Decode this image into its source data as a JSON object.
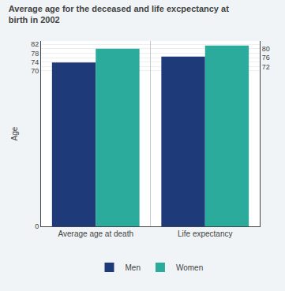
{
  "chart_data": {
    "type": "bar",
    "title": "Average age for the deceased and life excpectancy at birth in 2002",
    "categories": [
      "Average age at death",
      "Life expectancy"
    ],
    "series": [
      {
        "name": "Men",
        "color": "#1e3a78",
        "values": [
          73.8,
          76.5
        ]
      },
      {
        "name": "Women",
        "color": "#2aab9b",
        "values": [
          80.0,
          81.5
        ]
      }
    ],
    "ylabel": "Age",
    "ylim": [
      0,
      83.5
    ],
    "yticks": [
      0,
      70,
      72,
      74,
      76,
      78,
      80,
      82
    ],
    "grid": true,
    "legend": "bottom"
  }
}
